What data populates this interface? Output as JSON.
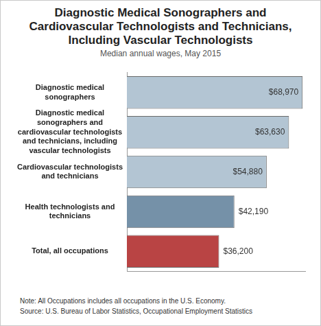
{
  "chart_data": {
    "type": "bar",
    "orientation": "horizontal",
    "title": "Diagnostic Medical Sonographers and Cardiovascular Technologists and Technicians, Including Vascular Technologists",
    "subtitle": "Median annual wages, May 2015",
    "categories": [
      "Diagnostic medical sonographers",
      "Diagnostic medical sonographers and cardiovascular technologists and technicians, including vascular technologists",
      "Cardiovascular technologists and technicians",
      "Health technologists and technicians",
      "Total, all occupations"
    ],
    "values": [
      68970,
      63630,
      54880,
      42190,
      36200
    ],
    "value_labels": [
      "$68,970",
      "$63,630",
      "$54,880",
      "$42,190",
      "$36,200"
    ],
    "colors": [
      "#b3c5d3",
      "#b3c5d3",
      "#b3c5d3",
      "#7591a8",
      "#b94444"
    ],
    "xlim": [
      0,
      70000
    ],
    "grid": false,
    "data_labels": true,
    "tick_labels": "y",
    "note": "Note: All Occupations includes all occupations in the U.S. Economy.",
    "source": "Source: U.S. Bureau of Labor Statistics, Occupational Employment Statistics"
  }
}
